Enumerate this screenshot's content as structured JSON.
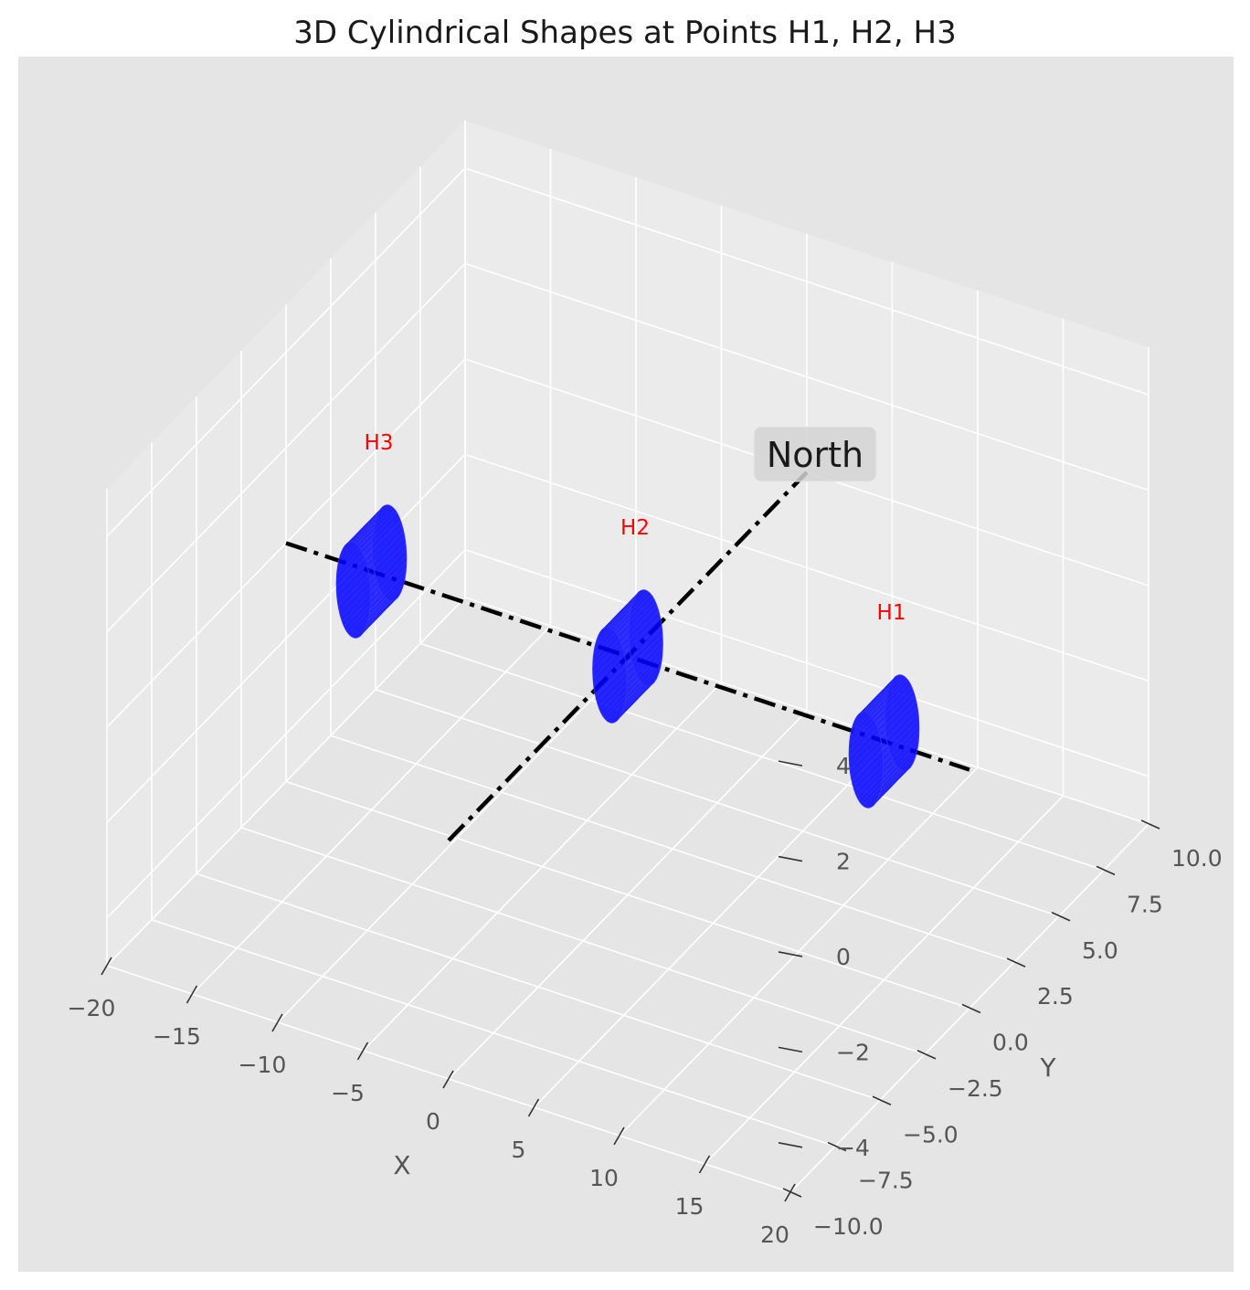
{
  "chart_data": {
    "type": "3d-scatter",
    "title": "3D Cylindrical Shapes at Points H1, H2, H3",
    "xlabel": "X",
    "ylabel": "Y",
    "zlabel": "",
    "xlim": [
      -20,
      20
    ],
    "ylim": [
      -10,
      10
    ],
    "zlim": [
      -5,
      5
    ],
    "grid": true,
    "x_ticks": [
      "−20",
      "−15",
      "−10",
      "−5",
      "0",
      "5",
      "10",
      "15",
      "20"
    ],
    "y_ticks": [
      "−10.0",
      "−7.5",
      "−5.0",
      "−2.5",
      "0.0",
      "2.5",
      "5.0",
      "7.5",
      "10.0"
    ],
    "z_ticks": [
      "−4",
      "−2",
      "0",
      "2",
      "4"
    ],
    "points": [
      {
        "label": "H1",
        "x": 15,
        "y": 0,
        "z": 0,
        "color": "#ff0000"
      },
      {
        "label": "H2",
        "x": 0,
        "y": 0,
        "z": 0,
        "color": "#ff0000"
      },
      {
        "label": "H3",
        "x": -15,
        "y": 0,
        "z": 0,
        "color": "#ff0000"
      }
    ],
    "cylinders": {
      "color": "#0000ff",
      "radius": 1,
      "length": 2
    },
    "lines": [
      {
        "from": [
          -20,
          0,
          0
        ],
        "to": [
          20,
          0,
          0
        ],
        "style": "dash-dot",
        "color": "#000000"
      },
      {
        "from": [
          0,
          -10,
          0
        ],
        "to": [
          0,
          10,
          0
        ],
        "style": "dash-dot",
        "color": "#000000"
      }
    ],
    "annotation": {
      "text": "North",
      "x": 0,
      "y": 10,
      "z": 0
    },
    "colors": {
      "pane": "#e5e5e5",
      "grid": "#ffffff",
      "cylinder": "#0000ff",
      "label": "#ff0000"
    }
  }
}
